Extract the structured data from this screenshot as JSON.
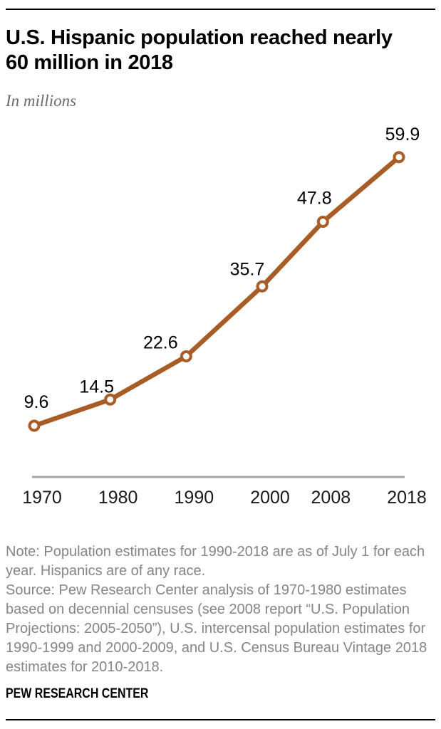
{
  "header": {
    "title_line1": "U.S. Hispanic population reached nearly",
    "title_line2": "60 million in 2018",
    "subtitle": "In millions"
  },
  "chart_data": {
    "type": "line",
    "title": "U.S. Hispanic population reached nearly 60 million in 2018",
    "subtitle": "In millions",
    "x": [
      1970,
      1980,
      1990,
      2000,
      2008,
      2018
    ],
    "values": [
      9.6,
      14.5,
      22.6,
      35.7,
      47.8,
      59.9
    ],
    "point_labels": [
      "9.6",
      "14.5",
      "22.6",
      "35.7",
      "47.8",
      "59.9"
    ],
    "tick_labels": [
      "1970",
      "1980",
      "1990",
      "2000",
      "2008",
      "2018"
    ],
    "xlim": [
      1970,
      2018
    ],
    "ylim_implied": [
      9.6,
      59.9
    ],
    "grid": false,
    "legend": "none",
    "line_color": "#a85d26",
    "marker_fill": "#ffffff",
    "axis_color": "#a6a6a6",
    "label_color": "#000000",
    "tick_color": "#1a1a1a"
  },
  "footer": {
    "note": "Note: Population estimates for 1990-2018 are as of July 1 for each year. Hispanics are of any race.",
    "source": "Source: Pew Research Center analysis of 1970-1980 estimates based on decennial censuses (see 2008 report “U.S. Population Projections: 2005-2050”), U.S. intercensal population estimates for 1990-1999 and 2000-2009, and U.S. Census Bureau Vintage 2018 estimates for 2010-2018.",
    "brand": "PEW RESEARCH CENTER"
  }
}
